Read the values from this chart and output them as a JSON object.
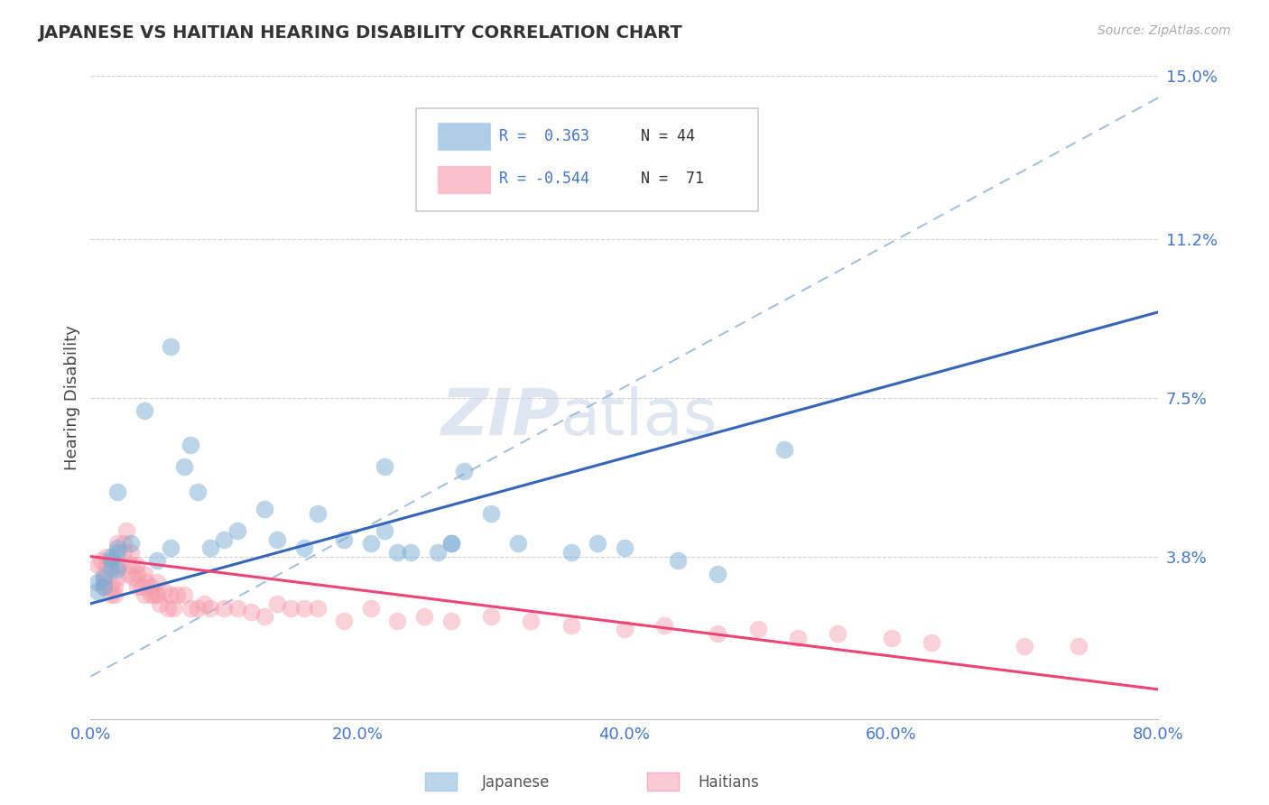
{
  "title": "JAPANESE VS HAITIAN HEARING DISABILITY CORRELATION CHART",
  "source_text": "Source: ZipAtlas.com",
  "ylabel": "Hearing Disability",
  "xlabel": "",
  "xlim": [
    0.0,
    0.8
  ],
  "ylim": [
    0.0,
    0.15
  ],
  "yticks": [
    0.0,
    0.038,
    0.075,
    0.112,
    0.15
  ],
  "ytick_labels": [
    "",
    "3.8%",
    "7.5%",
    "11.2%",
    "15.0%"
  ],
  "xtick_labels": [
    "0.0%",
    "20.0%",
    "40.0%",
    "60.0%",
    "80.0%"
  ],
  "xticks": [
    0.0,
    0.2,
    0.4,
    0.6,
    0.8
  ],
  "legend_R_japanese": "R =  0.363",
  "legend_N_japanese": "N = 44",
  "legend_R_haitian": "R = -0.544",
  "legend_N_haitian": "N =  71",
  "japanese_color": "#7aadd4",
  "haitian_color": "#f799aa",
  "japanese_line_color": "#3366bb",
  "haitian_line_color": "#ee4477",
  "trend_line_color": "#99bbdd",
  "grid_color": "#cccccc",
  "title_color": "#333333",
  "axis_label_color": "#4477cc",
  "background_color": "#ffffff",
  "watermark_color": "#c8d8e8",
  "japanese_scatter_x": [
    0.02,
    0.06,
    0.02,
    0.04,
    0.005,
    0.005,
    0.01,
    0.01,
    0.015,
    0.015,
    0.015,
    0.02,
    0.02,
    0.03,
    0.05,
    0.06,
    0.07,
    0.075,
    0.08,
    0.09,
    0.1,
    0.11,
    0.13,
    0.14,
    0.16,
    0.17,
    0.19,
    0.21,
    0.22,
    0.22,
    0.23,
    0.24,
    0.26,
    0.27,
    0.27,
    0.28,
    0.3,
    0.32,
    0.36,
    0.38,
    0.4,
    0.44,
    0.47,
    0.52
  ],
  "japanese_scatter_y": [
    0.053,
    0.087,
    0.035,
    0.072,
    0.032,
    0.03,
    0.031,
    0.033,
    0.035,
    0.037,
    0.038,
    0.039,
    0.04,
    0.041,
    0.037,
    0.04,
    0.059,
    0.064,
    0.053,
    0.04,
    0.042,
    0.044,
    0.049,
    0.042,
    0.04,
    0.048,
    0.042,
    0.041,
    0.059,
    0.044,
    0.039,
    0.039,
    0.039,
    0.041,
    0.041,
    0.058,
    0.048,
    0.041,
    0.039,
    0.041,
    0.04,
    0.037,
    0.034,
    0.063
  ],
  "haitian_scatter_x": [
    0.005,
    0.008,
    0.01,
    0.01,
    0.01,
    0.012,
    0.012,
    0.015,
    0.015,
    0.018,
    0.018,
    0.02,
    0.02,
    0.02,
    0.022,
    0.025,
    0.025,
    0.027,
    0.028,
    0.03,
    0.03,
    0.032,
    0.034,
    0.035,
    0.035,
    0.038,
    0.04,
    0.04,
    0.042,
    0.045,
    0.045,
    0.048,
    0.05,
    0.05,
    0.052,
    0.055,
    0.058,
    0.06,
    0.062,
    0.065,
    0.07,
    0.075,
    0.08,
    0.085,
    0.09,
    0.1,
    0.11,
    0.12,
    0.13,
    0.14,
    0.15,
    0.16,
    0.17,
    0.19,
    0.21,
    0.23,
    0.25,
    0.27,
    0.3,
    0.33,
    0.36,
    0.4,
    0.43,
    0.47,
    0.5,
    0.53,
    0.56,
    0.6,
    0.63,
    0.7,
    0.74
  ],
  "haitian_scatter_y": [
    0.036,
    0.037,
    0.031,
    0.032,
    0.034,
    0.036,
    0.038,
    0.029,
    0.031,
    0.029,
    0.031,
    0.033,
    0.036,
    0.041,
    0.036,
    0.039,
    0.041,
    0.044,
    0.034,
    0.036,
    0.039,
    0.033,
    0.036,
    0.031,
    0.034,
    0.031,
    0.034,
    0.029,
    0.032,
    0.029,
    0.031,
    0.029,
    0.032,
    0.029,
    0.027,
    0.03,
    0.026,
    0.029,
    0.026,
    0.029,
    0.029,
    0.026,
    0.026,
    0.027,
    0.026,
    0.026,
    0.026,
    0.025,
    0.024,
    0.027,
    0.026,
    0.026,
    0.026,
    0.023,
    0.026,
    0.023,
    0.024,
    0.023,
    0.024,
    0.023,
    0.022,
    0.021,
    0.022,
    0.02,
    0.021,
    0.019,
    0.02,
    0.019,
    0.018,
    0.017,
    0.017
  ],
  "japanese_trend_x": [
    0.0,
    0.8
  ],
  "japanese_trend_y": [
    0.027,
    0.095
  ],
  "haitian_trend_x": [
    0.0,
    0.8
  ],
  "haitian_trend_y": [
    0.038,
    0.007
  ],
  "overall_trend_x": [
    0.0,
    0.8
  ],
  "overall_trend_y": [
    0.01,
    0.145
  ],
  "watermark_top": "ZIP",
  "watermark_bottom": "atlas"
}
